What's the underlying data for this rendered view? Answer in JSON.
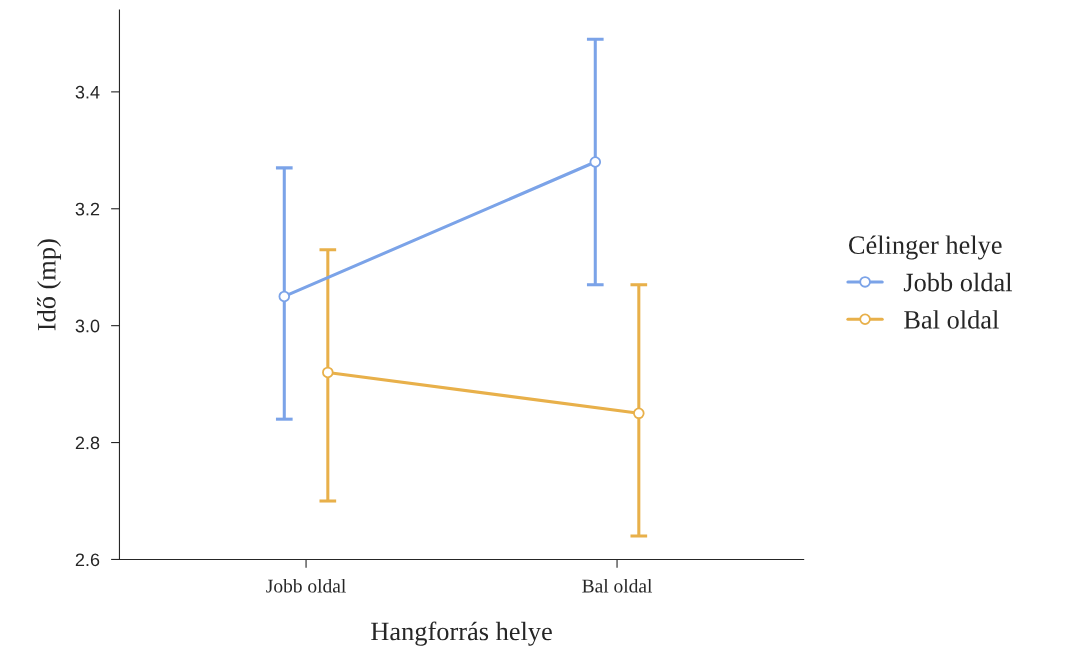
{
  "chart_data": {
    "type": "line",
    "xlabel": "Hangforrás helye",
    "ylabel": "Idő (mp)",
    "legend_title": "Célinger helye",
    "categories": [
      "Jobb oldal",
      "Bal oldal"
    ],
    "series": [
      {
        "name": "Jobb oldal",
        "color": "#7ba3e8",
        "values": [
          3.05,
          3.28
        ],
        "errors": [
          [
            2.84,
            3.27
          ],
          [
            3.07,
            3.49
          ]
        ]
      },
      {
        "name": "Bal oldal",
        "color": "#e8b04a",
        "values": [
          2.92,
          2.85
        ],
        "errors": [
          [
            2.7,
            3.13
          ],
          [
            2.64,
            3.07
          ]
        ]
      }
    ],
    "ylim": [
      2.6,
      3.54
    ],
    "yticks": [
      {
        "value": 2.6,
        "label": "2.6"
      },
      {
        "value": 2.8,
        "label": "2.8"
      },
      {
        "value": 3.0,
        "label": "3.0"
      },
      {
        "value": 3.2,
        "label": "3.2"
      },
      {
        "value": 3.4,
        "label": "3.4"
      }
    ],
    "grid": false,
    "legend": "right",
    "marker": "circle",
    "line_style": "solid"
  }
}
